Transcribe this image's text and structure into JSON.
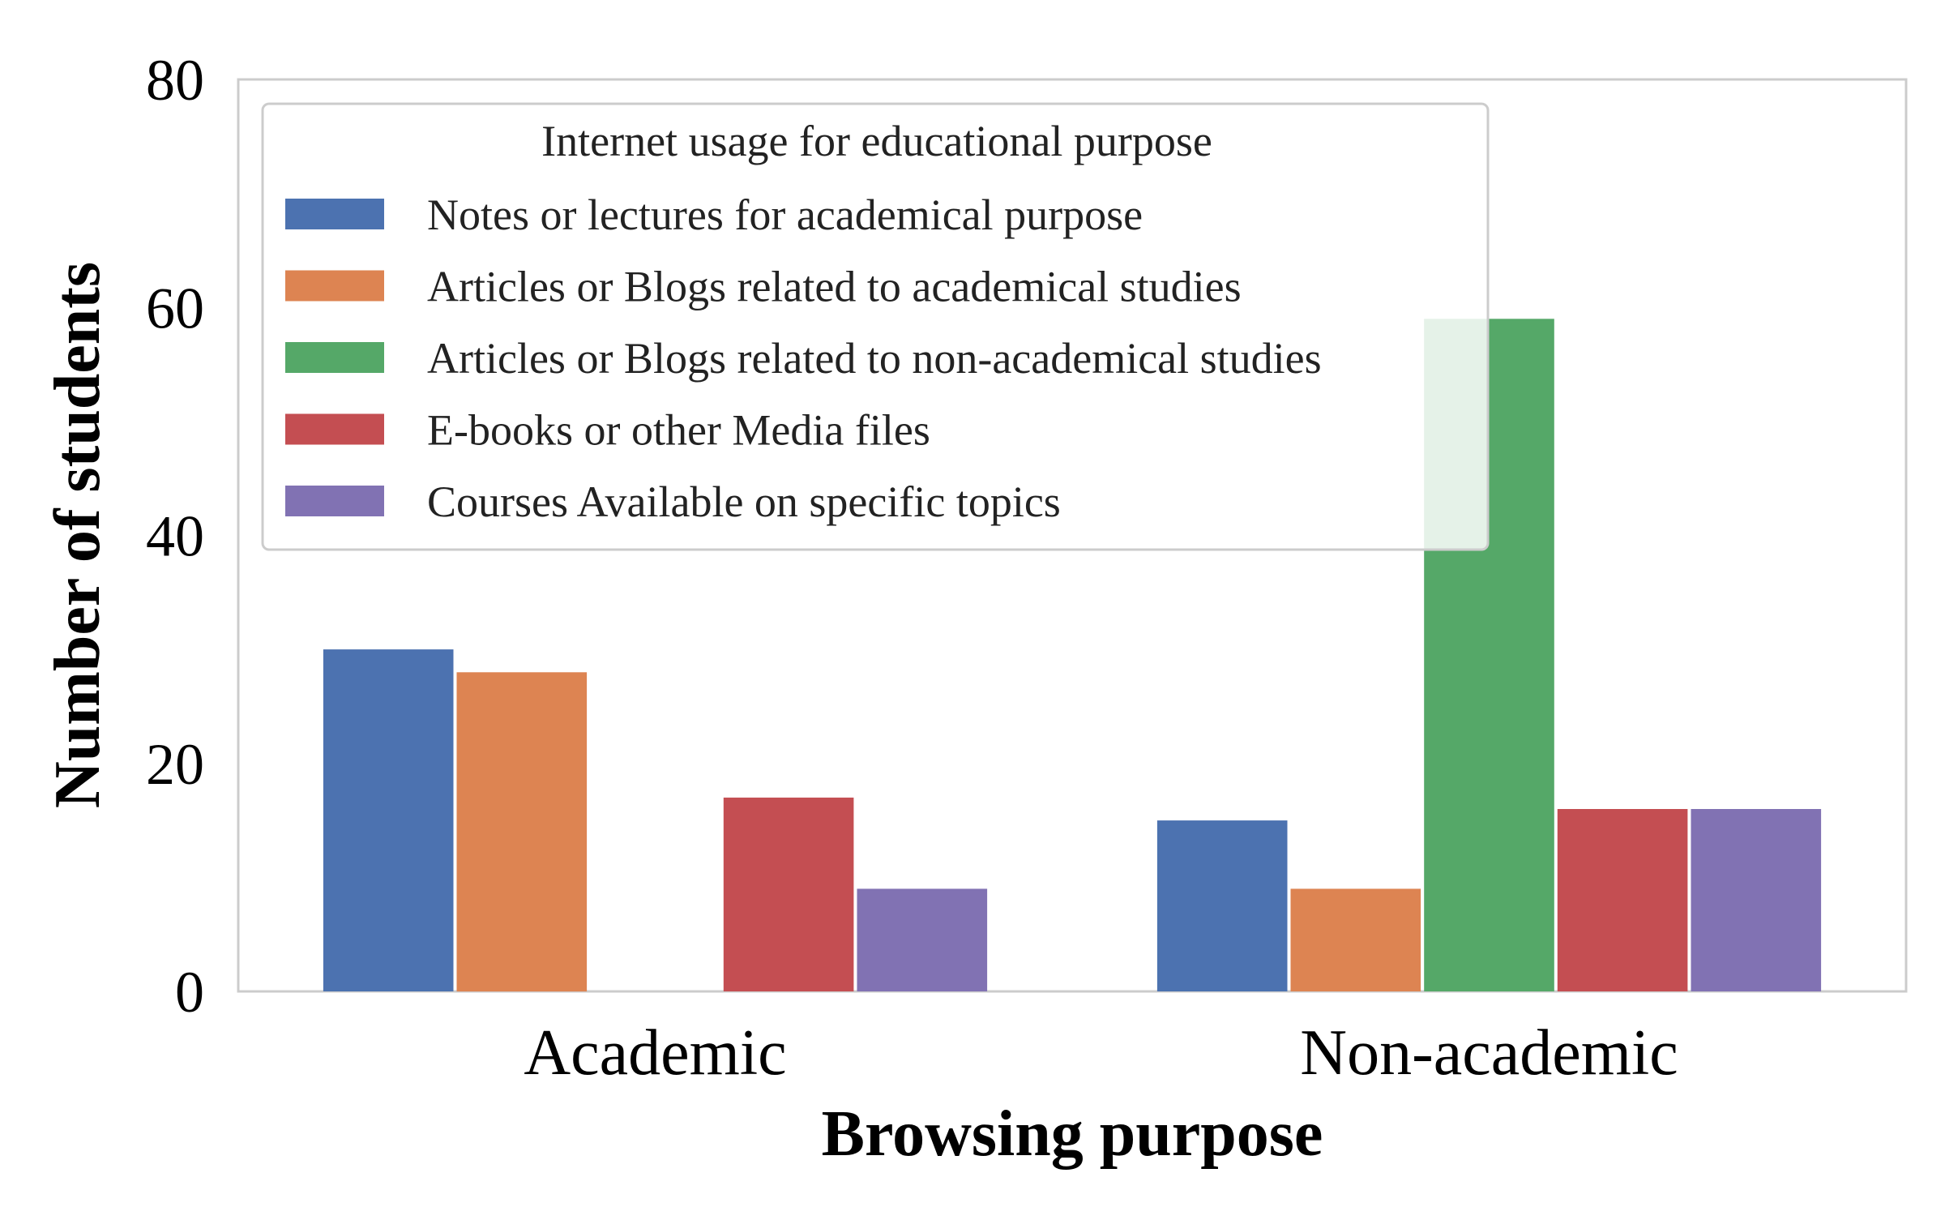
{
  "chart_data": {
    "type": "bar",
    "xlabel": "Browsing purpose",
    "ylabel": "Number of students",
    "categories": [
      "Academic",
      "Non-academic"
    ],
    "ylim": [
      0,
      80
    ],
    "yticks": [
      "0",
      "20",
      "40",
      "60",
      "80"
    ],
    "grid": false,
    "legend": {
      "title": "Internet usage for educational purpose",
      "placement": "upper-left"
    },
    "series": [
      {
        "name": "Notes or lectures for academical purpose",
        "color": "#4c72b0",
        "values": [
          30,
          15
        ]
      },
      {
        "name": "Articles or Blogs related to academical studies",
        "color": "#dd8452",
        "values": [
          28,
          9
        ]
      },
      {
        "name": "Articles or Blogs related to non-academical studies",
        "color": "#55a868",
        "values": [
          0,
          59
        ]
      },
      {
        "name": "E-books or other Media files",
        "color": "#c44e52",
        "values": [
          17,
          16
        ]
      },
      {
        "name": "Courses Available on specific topics",
        "color": "#8172b3",
        "values": [
          9,
          16
        ]
      }
    ]
  }
}
